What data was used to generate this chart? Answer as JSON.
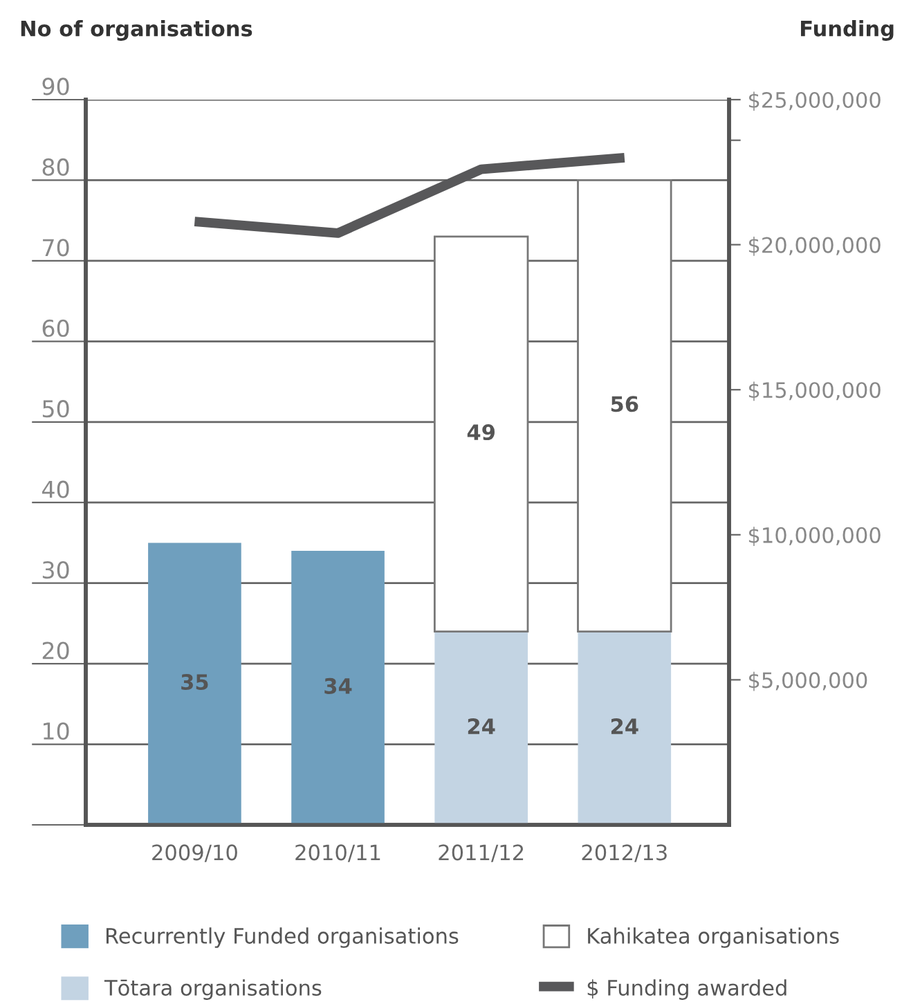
{
  "chart_data": {
    "type": "bar",
    "stacked": true,
    "ylabel": "No of organisations",
    "y2label": "Funding",
    "categories": [
      "2009/10",
      "2010/11",
      "2011/12",
      "2012/13"
    ],
    "series": [
      {
        "name": "Recurrently Funded organisations",
        "color": "#6f9fbe",
        "values": [
          35,
          34,
          null,
          null
        ],
        "value_labels": [
          "35",
          "34",
          null,
          null
        ]
      },
      {
        "name": "Tōtara organisations",
        "color": "#c3d4e3",
        "values": [
          null,
          null,
          24,
          24
        ],
        "value_labels": [
          null,
          null,
          "24",
          "24"
        ]
      },
      {
        "name": "Kahikatea organisations",
        "color": "#ffffff",
        "values": [
          null,
          null,
          49,
          56
        ],
        "value_labels": [
          null,
          null,
          "49",
          "56"
        ]
      },
      {
        "name": "$ Funding awarded",
        "type": "line",
        "axis": "y2",
        "color": "#58585a",
        "values": [
          20800000,
          20400000,
          22600000,
          23000000
        ]
      }
    ],
    "ylim": [
      0,
      90
    ],
    "yticks": [
      {
        "value": 0,
        "label": null
      },
      10,
      20,
      30,
      40,
      50,
      60,
      70,
      80,
      90
    ],
    "y2lim": [
      0,
      25000000
    ],
    "y2ticks": [
      {
        "value": 5000000,
        "label": "$5,000,000"
      },
      {
        "value": 10000000,
        "label": "$10,000,000"
      },
      {
        "value": 15000000,
        "label": "$15,000,000"
      },
      {
        "value": 20000000,
        "label": "$20,000,000"
      },
      {
        "value": 23600000,
        "label": null
      },
      {
        "value": 25000000,
        "label": "$25,000,000"
      }
    ],
    "grid": "y",
    "legend": "bottom"
  }
}
